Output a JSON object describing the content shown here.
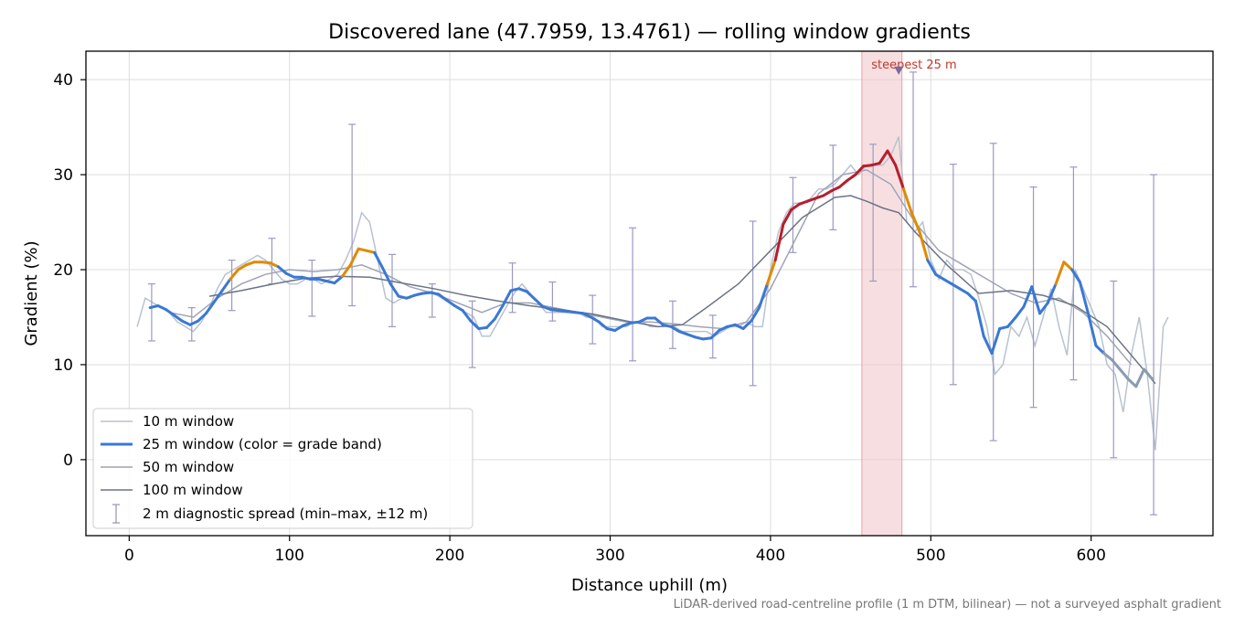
{
  "chart_data": {
    "type": "line",
    "title": "Discovered lane (47.7959, 13.4761) — rolling window gradients",
    "xlabel": "Distance uphill (m)",
    "ylabel": "Gradient (%)",
    "xlim": [
      -27,
      676
    ],
    "ylim": [
      -8,
      43
    ],
    "x_ticks": [
      0,
      100,
      200,
      300,
      400,
      500,
      600
    ],
    "y_ticks": [
      0,
      10,
      20,
      30,
      40
    ],
    "grid": true,
    "legend_position": "lower-left",
    "footnote": "LiDAR-derived road-centreline profile (1 m DTM, bilinear) — not a surveyed asphalt gradient",
    "steepest_window": {
      "label": "steepest 25 m",
      "x_start": 457,
      "x_end": 482,
      "peak_x": 480,
      "peak_y": 41,
      "color": "#b81d2d"
    },
    "colors": {
      "w10": "#b8c2d0",
      "w25_blue": "#3a78d4",
      "w25_orange": "#e08a00",
      "w25_red": "#b81d2d",
      "w25_grey": "#8a9bb0",
      "w50": "#9ea4b4",
      "w100": "#6b7385",
      "errorbar": "#9b99c2",
      "highlight": "#f2c9cd"
    },
    "series": [
      {
        "name": "10 m window",
        "key": "w10",
        "x": [
          5,
          10,
          15,
          20,
          25,
          30,
          35,
          40,
          45,
          50,
          55,
          60,
          65,
          70,
          75,
          80,
          85,
          90,
          95,
          100,
          105,
          110,
          115,
          120,
          125,
          130,
          135,
          140,
          145,
          150,
          155,
          160,
          165,
          170,
          175,
          180,
          185,
          190,
          195,
          200,
          205,
          210,
          215,
          220,
          225,
          230,
          235,
          240,
          245,
          250,
          255,
          260,
          265,
          270,
          275,
          280,
          285,
          290,
          295,
          300,
          305,
          310,
          315,
          320,
          325,
          330,
          335,
          340,
          345,
          350,
          355,
          360,
          365,
          370,
          375,
          380,
          385,
          390,
          395,
          400,
          405,
          410,
          415,
          420,
          425,
          430,
          435,
          440,
          445,
          450,
          455,
          460,
          465,
          470,
          475,
          480,
          485,
          490,
          495,
          500,
          505,
          510,
          515,
          520,
          525,
          530,
          535,
          540,
          545,
          550,
          555,
          560,
          565,
          570,
          575,
          580,
          585,
          590,
          595,
          600,
          605,
          610,
          615,
          620,
          625,
          630,
          635,
          640,
          645,
          648
        ],
        "y": [
          14,
          17,
          16.5,
          16,
          15.5,
          14.5,
          14,
          13.5,
          14.5,
          16,
          18,
          19.5,
          20,
          20.5,
          21,
          21.5,
          21,
          20,
          19,
          18.5,
          18.5,
          19,
          19,
          18.5,
          19,
          19.5,
          21,
          23,
          26,
          25,
          21,
          17,
          16.5,
          17,
          17,
          17.5,
          17.5,
          17.5,
          17,
          16.5,
          16,
          15.5,
          15,
          13,
          13,
          14.5,
          16,
          17.5,
          18.5,
          17.5,
          16.5,
          15.5,
          15.5,
          15.5,
          15.5,
          15.5,
          15,
          15,
          14,
          14,
          14,
          14,
          14.5,
          14.5,
          14,
          14,
          14,
          14,
          13.5,
          13.5,
          13.5,
          13.5,
          13,
          13.5,
          14,
          14,
          14.5,
          14,
          14,
          20,
          24,
          26,
          27,
          27,
          27.5,
          28.5,
          28.5,
          29,
          30,
          31,
          30,
          31,
          31,
          31,
          32,
          34,
          25,
          24,
          25,
          21,
          19,
          21,
          20,
          20,
          19.5,
          17,
          14,
          9,
          10,
          14,
          13,
          15,
          12,
          15,
          18,
          14,
          11,
          20,
          18,
          16,
          14,
          10,
          9,
          5,
          11,
          15,
          9,
          1,
          14,
          15
        ]
      },
      {
        "name": "25 m window (color = grade band)",
        "key": "w25",
        "x": [
          13,
          18,
          23,
          28,
          33,
          38,
          43,
          48,
          53,
          58,
          63,
          68,
          73,
          78,
          83,
          88,
          93,
          98,
          103,
          108,
          113,
          118,
          123,
          128,
          133,
          138,
          143,
          148,
          153,
          158,
          163,
          168,
          173,
          178,
          183,
          188,
          193,
          198,
          203,
          208,
          213,
          218,
          223,
          228,
          233,
          238,
          243,
          248,
          253,
          258,
          263,
          268,
          273,
          278,
          283,
          288,
          293,
          298,
          303,
          308,
          313,
          318,
          323,
          328,
          333,
          338,
          343,
          348,
          353,
          358,
          363,
          368,
          373,
          378,
          383,
          388,
          393,
          398,
          403,
          408,
          413,
          418,
          423,
          428,
          433,
          438,
          443,
          448,
          453,
          458,
          463,
          468,
          473,
          478,
          483,
          488,
          493,
          498,
          503,
          508,
          513,
          518,
          523,
          528,
          533,
          538,
          543,
          548,
          553,
          558,
          563,
          568,
          573,
          578,
          583,
          588,
          593,
          598,
          603,
          608,
          613,
          618,
          623,
          628,
          633,
          638
        ],
        "y": [
          16,
          16.2,
          15.8,
          15.2,
          14.6,
          14.2,
          14.6,
          15.4,
          16.6,
          17.8,
          19,
          20,
          20.5,
          20.8,
          20.8,
          20.7,
          20.3,
          19.6,
          19.2,
          19.2,
          19,
          19,
          18.8,
          18.6,
          19.3,
          20.5,
          22.2,
          22,
          21.8,
          20.2,
          18.5,
          17.2,
          17,
          17.3,
          17.5,
          17.6,
          17.4,
          16.8,
          16.2,
          15.7,
          14.6,
          13.8,
          13.9,
          14.8,
          16.2,
          17.8,
          18,
          17.7,
          16.9,
          16.1,
          15.8,
          15.7,
          15.6,
          15.5,
          15.4,
          15,
          14.5,
          13.8,
          13.6,
          14.1,
          14.4,
          14.5,
          14.9,
          14.9,
          14.2,
          14,
          13.5,
          13.2,
          12.9,
          12.7,
          12.8,
          13.6,
          14,
          14.2,
          13.8,
          14.6,
          16,
          18.5,
          21,
          24.8,
          26.3,
          26.9,
          27.2,
          27.5,
          27.8,
          28.3,
          28.7,
          29.4,
          30,
          30.9,
          31,
          31.2,
          32.5,
          31,
          28.5,
          26,
          24,
          21,
          19.5,
          19,
          18.5,
          18,
          17.5,
          16.7,
          13,
          11.2,
          13.8,
          14,
          15,
          16.1,
          18.2,
          15.4,
          16.5,
          18.5,
          20.8,
          20,
          18.7,
          15.5,
          12,
          11.2,
          10.5,
          9.5,
          8.5,
          7.7,
          9.5,
          8.5
        ],
        "band": [
          "blue",
          "blue",
          "blue",
          "blue",
          "blue",
          "blue",
          "blue",
          "blue",
          "blue",
          "blue",
          "blue",
          "orange",
          "orange",
          "orange",
          "orange",
          "orange",
          "orange",
          "blue",
          "blue",
          "blue",
          "blue",
          "blue",
          "blue",
          "blue",
          "blue",
          "orange",
          "orange",
          "orange",
          "orange",
          "blue",
          "blue",
          "blue",
          "blue",
          "blue",
          "blue",
          "blue",
          "blue",
          "blue",
          "blue",
          "blue",
          "blue",
          "blue",
          "blue",
          "blue",
          "blue",
          "blue",
          "blue",
          "blue",
          "blue",
          "blue",
          "blue",
          "blue",
          "blue",
          "blue",
          "blue",
          "blue",
          "blue",
          "blue",
          "blue",
          "blue",
          "blue",
          "blue",
          "blue",
          "blue",
          "blue",
          "blue",
          "blue",
          "blue",
          "blue",
          "blue",
          "blue",
          "blue",
          "blue",
          "blue",
          "blue",
          "blue",
          "blue",
          "blue",
          "orange",
          "red",
          "red",
          "red",
          "red",
          "red",
          "red",
          "red",
          "red",
          "red",
          "red",
          "red",
          "red",
          "red",
          "red",
          "red",
          "red",
          "orange",
          "orange",
          "orange",
          "blue",
          "blue",
          "blue",
          "blue",
          "blue",
          "blue",
          "blue",
          "blue",
          "blue",
          "blue",
          "blue",
          "blue",
          "blue",
          "blue",
          "blue",
          "blue",
          "orange",
          "orange",
          "blue",
          "blue",
          "blue",
          "blue",
          "grey",
          "grey",
          "grey",
          "grey",
          "grey",
          "grey"
        ]
      },
      {
        "name": "50 m window",
        "key": "w50",
        "x": [
          25,
          40,
          55,
          70,
          85,
          100,
          115,
          130,
          145,
          160,
          175,
          190,
          205,
          220,
          235,
          250,
          265,
          280,
          295,
          310,
          325,
          340,
          355,
          370,
          385,
          400,
          415,
          430,
          445,
          460,
          475,
          490,
          505,
          520,
          535,
          550,
          565,
          580,
          595,
          610,
          625
        ],
        "y": [
          15.5,
          15,
          17,
          18.5,
          19.5,
          20,
          19.8,
          20,
          20.5,
          19.5,
          18.2,
          17.5,
          16.5,
          15.5,
          16.5,
          16.5,
          16,
          15.5,
          15,
          14.5,
          14.5,
          14.3,
          14,
          13.8,
          14.5,
          18,
          23,
          28,
          30,
          30.5,
          29,
          25,
          22,
          20.5,
          19,
          17.5,
          16.5,
          17,
          15.5,
          13,
          10
        ]
      },
      {
        "name": "100 m window",
        "key": "w100",
        "x": [
          50,
          70,
          90,
          110,
          130,
          150,
          170,
          190,
          210,
          230,
          250,
          270,
          290,
          310,
          330,
          345,
          360,
          380,
          400,
          420,
          440,
          450,
          460,
          470,
          480,
          490,
          510,
          530,
          550,
          570,
          590,
          610,
          625,
          640
        ],
        "y": [
          17.2,
          17.8,
          18.5,
          19.1,
          19.3,
          19.2,
          18.6,
          18,
          17.3,
          16.7,
          16.2,
          15.8,
          15.3,
          14.6,
          14,
          14.2,
          16,
          18.5,
          22,
          25.5,
          27.6,
          27.8,
          27.2,
          26.5,
          26,
          24,
          20.5,
          17.5,
          17.8,
          17.3,
          16.2,
          14,
          11,
          8
        ]
      },
      {
        "name": "2 m diagnostic spread (min–max, ±12 m)",
        "key": "spread",
        "x": [
          14,
          39,
          64,
          89,
          114,
          139,
          164,
          189,
          214,
          239,
          264,
          289,
          314,
          339,
          364,
          389,
          414,
          439,
          464,
          489,
          514,
          539,
          564,
          589,
          614,
          639
        ],
        "low": [
          12.5,
          12.5,
          15.7,
          18.5,
          15.1,
          16.2,
          14,
          15,
          9.7,
          15.5,
          14.6,
          12.2,
          10.4,
          11.7,
          10.7,
          7.8,
          21.8,
          24.2,
          18.8,
          18.2,
          7.9,
          2,
          5.5,
          8.4,
          0.2,
          -5.8
        ],
        "high": [
          18.5,
          16,
          21,
          23.3,
          21,
          35.3,
          21.6,
          18.5,
          16.7,
          20.7,
          18.7,
          17.3,
          24.4,
          16.7,
          15.2,
          25.1,
          29.7,
          33.1,
          33.2,
          40.8,
          31.1,
          33.3,
          28.7,
          30.8,
          18.8,
          30
        ]
      }
    ]
  }
}
